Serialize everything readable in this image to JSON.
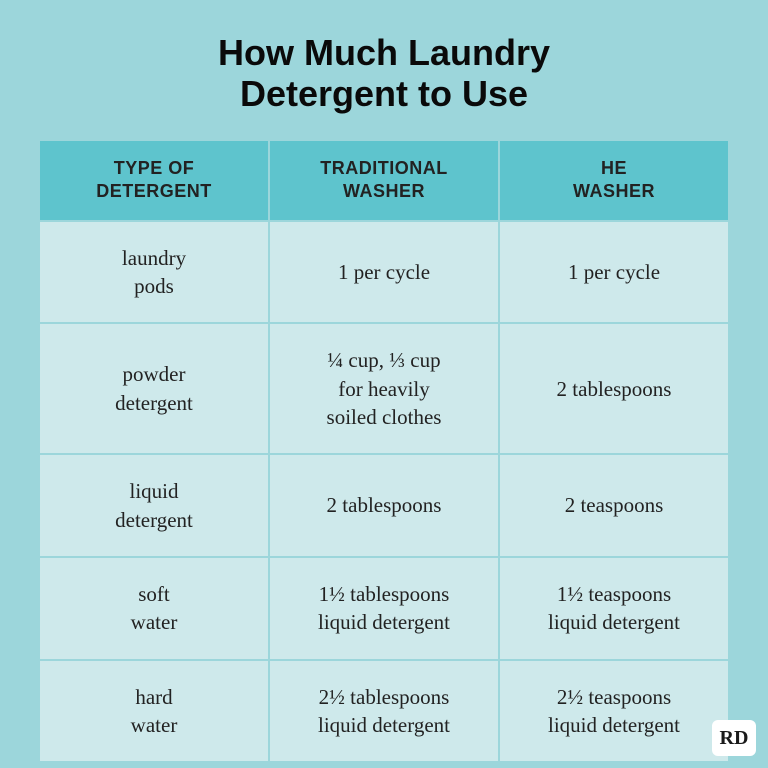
{
  "title_line1": "How Much Laundry",
  "title_line2": "Detergent to Use",
  "title_fontsize": 36,
  "title_color": "#0a0a0a",
  "background_color": "#9cd6db",
  "table": {
    "type": "table",
    "header_bg": "#5ec4cd",
    "header_color": "#222222",
    "header_fontsize": 18,
    "row_bg": "#cee9eb",
    "row_color": "#222222",
    "cell_fontsize": 21,
    "border_color": "#9cd6db",
    "border_width": 2,
    "columns": [
      "TYPE OF\nDETERGENT",
      "TRADITIONAL\nWASHER",
      "HE\nWASHER"
    ],
    "rows": [
      [
        "laundry\npods",
        "1 per cycle",
        "1 per cycle"
      ],
      [
        "powder\ndetergent",
        "¼ cup, ⅓ cup\nfor heavily\nsoiled clothes",
        "2 tablespoons"
      ],
      [
        "liquid\ndetergent",
        "2 tablespoons",
        "2 teaspoons"
      ],
      [
        "soft\nwater",
        "1½ tablespoons\nliquid detergent",
        "1½ teaspoons\nliquid detergent"
      ],
      [
        "hard\nwater",
        "2½ tablespoons\nliquid detergent",
        "2½ teaspoons\nliquid detergent"
      ]
    ]
  },
  "logo": {
    "text": "RD",
    "bg": "#ffffff",
    "color": "#1a1a1a",
    "fontsize": 20
  }
}
